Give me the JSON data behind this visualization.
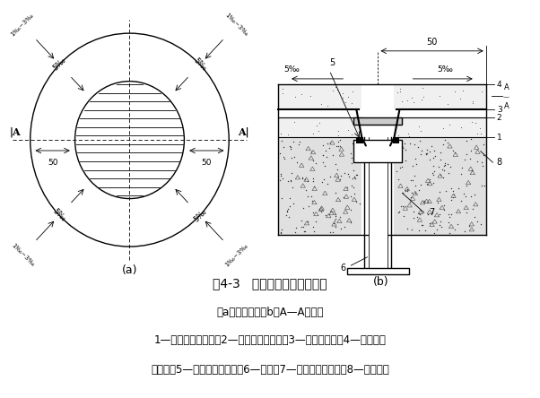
{
  "title": "图4-3   地漏口防水做法示意图",
  "subtitle": "（a）平面图；（b）A—A剖面图",
  "caption_line1": "1—钢筋混凝土楼板；2—水泥砂浆找平层；3—涂膜防水层；4—水泥砂浆",
  "caption_line2": "保护层；5—膨胀橡胶止水条；6—主管；7—补偿收缩混凝土；8—密封材料",
  "label_a": "(a)",
  "label_b": "(b)",
  "bg_color": "#ffffff",
  "line_color": "#000000",
  "slope_5": "5‰",
  "slope_13": "1‰~3‰",
  "font_size_title": 10,
  "font_size_caption": 8.5,
  "font_size_label": 9,
  "font_size_anno": 6.5,
  "font_size_num": 7
}
